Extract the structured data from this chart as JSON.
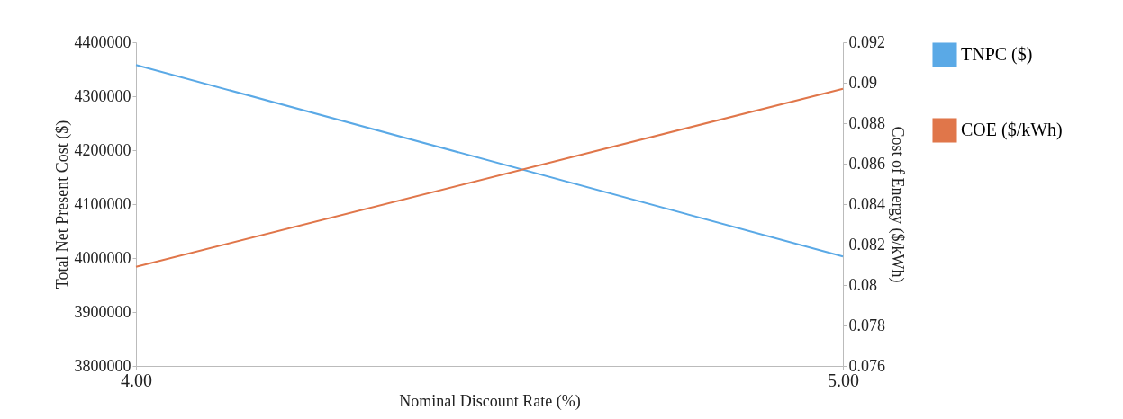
{
  "chart_data": {
    "type": "line",
    "xlabel": "Nominal Discount Rate (%)",
    "ylabel": "Total Net Present Cost ($)",
    "y2label": "Cost of Energy ($/kWh)",
    "x": [
      4,
      5
    ],
    "series": [
      {
        "name": "TNPC ($)",
        "color": "#5aa9e6",
        "values": [
          4358000,
          4003000
        ]
      },
      {
        "name": "COE ($/kWh)",
        "color": "#e0764a",
        "values": [
          0.0809,
          0.0897
        ],
        "axis": "y2"
      }
    ],
    "xlim": [
      4,
      5
    ],
    "xticks": [
      {
        "value": 4,
        "label": "4.00"
      },
      {
        "value": 5,
        "label": "5.00"
      }
    ],
    "ylim": [
      3800000,
      4400000
    ],
    "yticks": [
      3800000,
      3900000,
      4000000,
      4100000,
      4200000,
      4300000,
      4400000
    ],
    "y2lim": [
      0.076,
      0.092
    ],
    "y2ticks": [
      0.076,
      0.078,
      0.08,
      0.082,
      0.084,
      0.086,
      0.088,
      0.09,
      0.092
    ],
    "grid": false,
    "legend": "top right",
    "marker": "none",
    "line_style": "solid"
  }
}
